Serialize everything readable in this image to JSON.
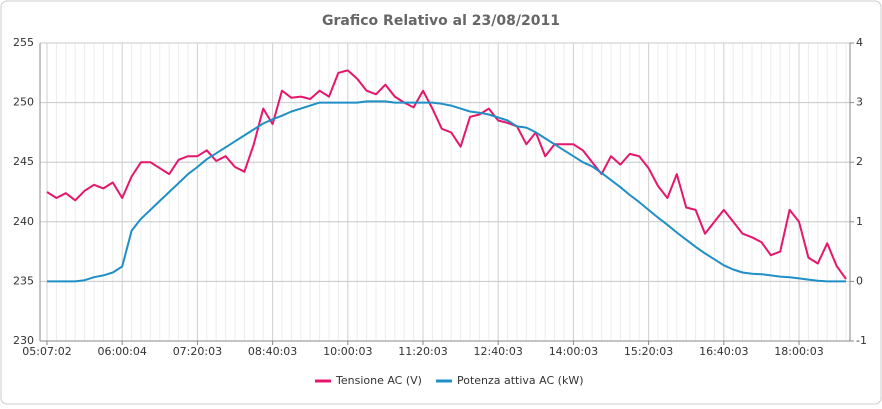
{
  "chart_data": {
    "type": "line",
    "title": "Grafico Relativo al 23/08/2011",
    "categories": [
      "05:07:02",
      null,
      null,
      null,
      null,
      null,
      null,
      null,
      "06:00:04",
      null,
      null,
      null,
      null,
      null,
      null,
      null,
      "07:20:03",
      null,
      null,
      null,
      null,
      null,
      null,
      null,
      "08:40:03",
      null,
      null,
      null,
      null,
      null,
      null,
      null,
      "10:00:03",
      null,
      null,
      null,
      null,
      null,
      null,
      null,
      "11:20:03",
      null,
      null,
      null,
      null,
      null,
      null,
      null,
      "12:40:03",
      null,
      null,
      null,
      null,
      null,
      null,
      null,
      "14:00:03",
      null,
      null,
      null,
      null,
      null,
      null,
      null,
      "15:20:03",
      null,
      null,
      null,
      null,
      null,
      null,
      null,
      "16:40:03",
      null,
      null,
      null,
      null,
      null,
      null,
      null,
      "18:00:03",
      null,
      null,
      null,
      null,
      null
    ],
    "series": [
      {
        "name": "Tensione AC (V)",
        "color": "#e5176d",
        "values": [
          242.5,
          242.0,
          242.4,
          241.8,
          242.6,
          243.1,
          242.8,
          243.3,
          242.0,
          243.8,
          245.0,
          245.0,
          244.5,
          244.0,
          245.2,
          245.5,
          245.5,
          246.0,
          245.1,
          245.5,
          244.6,
          244.2,
          246.5,
          249.5,
          248.2,
          251.0,
          250.4,
          250.5,
          250.3,
          251.0,
          250.5,
          252.5,
          252.7,
          252.0,
          251.0,
          250.7,
          251.5,
          250.5,
          250.0,
          249.6,
          251.0,
          249.5,
          247.8,
          247.5,
          246.3,
          248.8,
          249.0,
          249.5,
          248.5,
          248.3,
          248.0,
          246.5,
          247.5,
          245.5,
          246.5,
          246.5,
          246.5,
          246.0,
          245.0,
          244.0,
          245.5,
          244.8,
          245.7,
          245.5,
          244.5,
          243.0,
          242.0,
          244.0,
          241.2,
          241.0,
          239.0,
          240.0,
          241.0,
          240.0,
          239.0,
          238.7,
          238.3,
          237.2,
          237.5,
          241.0,
          240.0,
          237.0,
          236.5,
          238.2,
          236.3,
          235.2
        ]
      },
      {
        "name": "Potenza attiva AC (kW)",
        "color": "#1f8fc6",
        "axis": "y2",
        "values": [
          0,
          0,
          0,
          0,
          0.02,
          0.07,
          0.1,
          0.15,
          0.25,
          0.85,
          1.05,
          1.2,
          1.35,
          1.5,
          1.65,
          1.8,
          1.92,
          2.05,
          2.15,
          2.25,
          2.35,
          2.45,
          2.55,
          2.65,
          2.72,
          2.78,
          2.85,
          2.9,
          2.95,
          3.0,
          3.0,
          3.0,
          3.0,
          3.0,
          3.02,
          3.02,
          3.02,
          3.0,
          3.0,
          3.0,
          3.0,
          3.0,
          2.98,
          2.95,
          2.9,
          2.85,
          2.83,
          2.8,
          2.75,
          2.7,
          2.6,
          2.58,
          2.5,
          2.4,
          2.3,
          2.2,
          2.1,
          2.0,
          1.93,
          1.82,
          1.7,
          1.58,
          1.45,
          1.33,
          1.2,
          1.07,
          0.95,
          0.82,
          0.7,
          0.58,
          0.47,
          0.37,
          0.27,
          0.2,
          0.15,
          0.13,
          0.12,
          0.1,
          0.08,
          0.07,
          0.05,
          0.03,
          0.01,
          0,
          0,
          0
        ]
      }
    ],
    "ylim": [
      230,
      255
    ],
    "yticks": [
      230,
      235,
      240,
      245,
      250,
      255
    ],
    "y2lim": [
      -1,
      4
    ],
    "y2ticks": [
      -1,
      0,
      1,
      2,
      3,
      4
    ],
    "grid": true,
    "legend": "bottom"
  }
}
